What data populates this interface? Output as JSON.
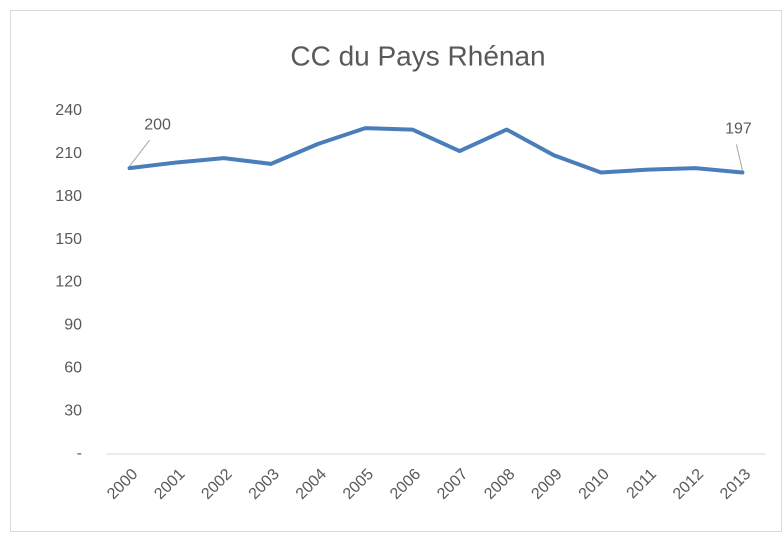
{
  "chart_data": {
    "type": "line",
    "title": "CC du Pays Rhénan",
    "categories": [
      "2000",
      "2001",
      "2002",
      "2003",
      "2004",
      "2005",
      "2006",
      "2007",
      "2008",
      "2009",
      "2010",
      "2011",
      "2012",
      "2013"
    ],
    "values": [
      200,
      204,
      207,
      203,
      217,
      228,
      227,
      212,
      227,
      209,
      197,
      199,
      200,
      197
    ],
    "value_labels": [
      "200",
      null,
      null,
      null,
      null,
      null,
      null,
      null,
      null,
      null,
      null,
      null,
      null,
      "197"
    ],
    "color": "#4a7ebb",
    "ylim": [
      0,
      240
    ],
    "yticks": [
      {
        "value": 0,
        "label": "-"
      },
      30,
      60,
      90,
      120,
      150,
      180,
      210,
      240
    ],
    "grid": false
  }
}
